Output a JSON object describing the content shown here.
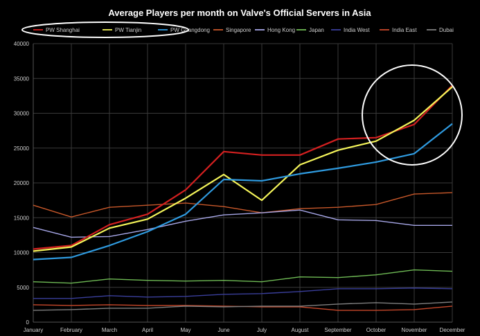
{
  "chart_data": {
    "type": "line",
    "title": "Average Players per month on Valve's Official Servers in Asia",
    "xlabel": "",
    "ylabel": "",
    "ylim": [
      0,
      40000
    ],
    "grid": true,
    "legend_position": "top",
    "categories": [
      "January",
      "February",
      "March",
      "April",
      "May",
      "June",
      "July",
      "August",
      "September",
      "October",
      "November",
      "December"
    ],
    "y_ticks": [
      "0",
      "5000",
      "10000",
      "15000",
      "20000",
      "25000",
      "30000",
      "35000",
      "40000"
    ],
    "series": [
      {
        "name": "PW Shanghai",
        "color": "#d42020",
        "highlighted": true,
        "values": [
          10500,
          11000,
          14000,
          15500,
          19000,
          24500,
          24000,
          24000,
          26300,
          26500,
          28400,
          34000
        ]
      },
      {
        "name": "PW Tianjin",
        "color": "#f5f55a",
        "highlighted": true,
        "values": [
          10200,
          10800,
          13500,
          14800,
          17800,
          21200,
          17500,
          22600,
          24700,
          26000,
          29000,
          33800
        ]
      },
      {
        "name": "PW Guangdong",
        "color": "#2f9be0",
        "highlighted": true,
        "values": [
          9000,
          9300,
          11000,
          13000,
          15500,
          20500,
          20300,
          21300,
          22100,
          23000,
          24200,
          28500
        ]
      },
      {
        "name": "Singapore",
        "color": "#c8582a",
        "values": [
          16800,
          15100,
          16500,
          16800,
          17100,
          16600,
          15700,
          16300,
          16500,
          16900,
          18400,
          18600
        ]
      },
      {
        "name": "Hong Kong",
        "color": "#a7a7e8",
        "values": [
          13600,
          12200,
          12300,
          13300,
          14500,
          15400,
          15700,
          16100,
          14700,
          14600,
          13900,
          13900
        ]
      },
      {
        "name": "Japan",
        "color": "#6fbb55",
        "values": [
          5800,
          5600,
          6200,
          6000,
          5900,
          6000,
          5800,
          6500,
          6400,
          6800,
          7500,
          7300
        ]
      },
      {
        "name": "India West",
        "color": "#3a3f9c",
        "values": [
          3400,
          3400,
          3800,
          3600,
          3700,
          4000,
          4100,
          4400,
          4800,
          4800,
          4900,
          4800
        ]
      },
      {
        "name": "India East",
        "color": "#c9482a",
        "values": [
          2500,
          2400,
          2500,
          2400,
          2400,
          2300,
          2200,
          2200,
          1700,
          1700,
          1800,
          2300
        ]
      },
      {
        "name": "Dubai",
        "color": "#7f7f7f",
        "values": [
          1700,
          1800,
          2000,
          2000,
          2300,
          2200,
          2300,
          2300,
          2600,
          2800,
          2600,
          2900
        ]
      }
    ]
  }
}
